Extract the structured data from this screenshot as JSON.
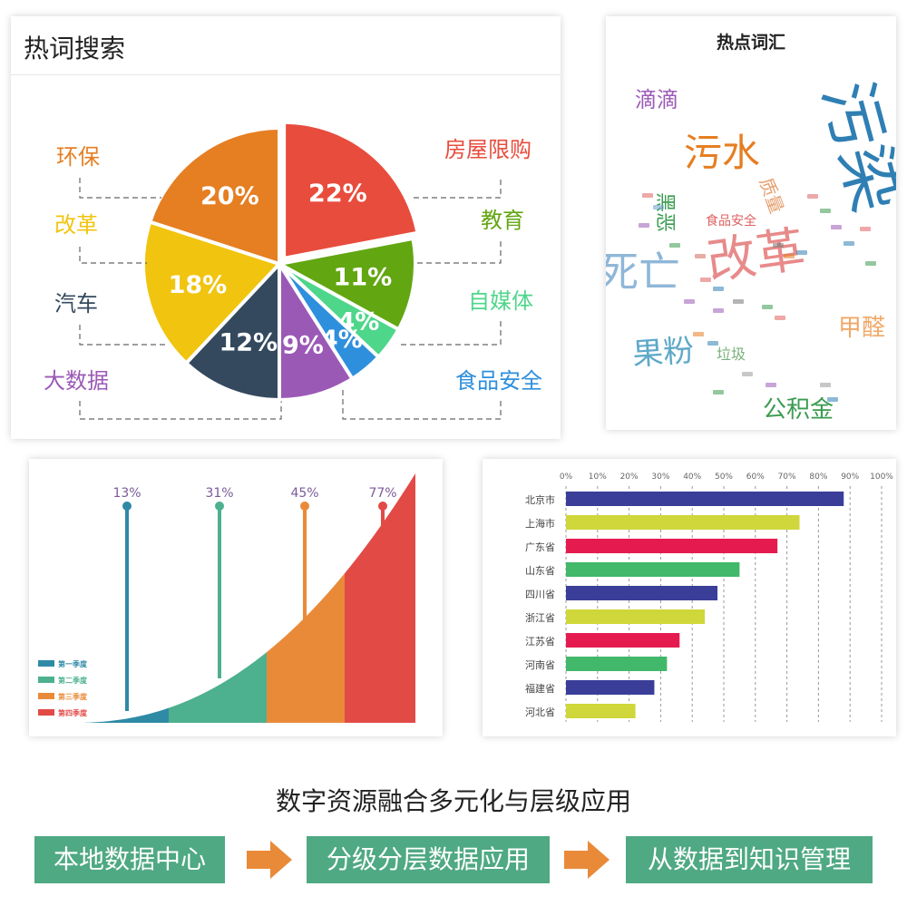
{
  "pie_card": {
    "title": "热词搜索"
  },
  "wordcloud_card": {
    "title": "热点词汇"
  },
  "funnel_card": {},
  "bar_card": {},
  "footer": {
    "title": "数字资源融合多元化与层级应用",
    "steps": [
      "本地数据中心",
      "分级分层数据应用",
      "从数据到知识管理"
    ],
    "step_color": "#4fa983",
    "arrow_color": "#e98a39"
  },
  "chart_data": [
    {
      "type": "pie",
      "title": "热词搜索",
      "slices": [
        {
          "label": "房屋限购",
          "value": 22,
          "display": "22%",
          "color": "#e84c3d"
        },
        {
          "label": "教育",
          "value": 11,
          "display": "11%",
          "color": "#62a612"
        },
        {
          "label": "自媒体",
          "value": 4,
          "display": "4%",
          "color": "#4ed68a"
        },
        {
          "label": "食品安全",
          "value": 4,
          "display": "4%",
          "color": "#2e8fdd"
        },
        {
          "label": "大数据",
          "value": 9,
          "display": "9%",
          "color": "#9b59b6"
        },
        {
          "label": "汽车",
          "value": 12,
          "display": "12%",
          "color": "#34495e"
        },
        {
          "label": "改革",
          "value": 18,
          "display": "18%",
          "color": "#f1c40f"
        },
        {
          "label": "环保",
          "value": 20,
          "display": "20%",
          "color": "#e67e22"
        }
      ]
    },
    {
      "type": "wordcloud",
      "title": "热点词汇",
      "words": [
        {
          "text": "污染",
          "color": "#2f7fb4"
        },
        {
          "text": "污水",
          "color": "#e67e22"
        },
        {
          "text": "滴滴",
          "color": "#9b59b6"
        },
        {
          "text": "改革",
          "color": "#e88a8a"
        },
        {
          "text": "死亡",
          "color": "#8fb7d8"
        },
        {
          "text": "果粉",
          "color": "#5fa9c9"
        },
        {
          "text": "甲醛",
          "color": "#f0a868"
        },
        {
          "text": "公积金",
          "color": "#3a9b4f"
        },
        {
          "text": "黑恶",
          "color": "#3a9b4f"
        },
        {
          "text": "质量",
          "color": "#e6a070"
        },
        {
          "text": "食品安全",
          "color": "#e06060"
        },
        {
          "text": "垃圾",
          "color": "#7ab07a"
        }
      ]
    },
    {
      "type": "area",
      "series": [
        {
          "name": "第一季度",
          "value": 13,
          "display": "13%",
          "color": "#2f8aa6"
        },
        {
          "name": "第二季度",
          "value": 31,
          "display": "31%",
          "color": "#4db08e"
        },
        {
          "name": "第三季度",
          "value": 45,
          "display": "45%",
          "color": "#e98a39"
        },
        {
          "name": "第四季度",
          "value": 77,
          "display": "77%",
          "color": "#e24a46"
        }
      ],
      "label_color": "#7a5a9a"
    },
    {
      "type": "bar",
      "orientation": "horizontal",
      "categories": [
        "北京市",
        "上海市",
        "广东省",
        "山东省",
        "四川省",
        "浙江省",
        "江苏省",
        "河南省",
        "福建省",
        "河北省"
      ],
      "values": [
        88,
        74,
        67,
        55,
        48,
        44,
        36,
        32,
        28,
        22
      ],
      "colors": [
        "#3a3e99",
        "#cfd73a",
        "#e51b4f",
        "#42b86a",
        "#3a3e99",
        "#cfd73a",
        "#e51b4f",
        "#42b86a",
        "#3a3e99",
        "#cfd73a"
      ],
      "xticks": [
        "0%",
        "10%",
        "20%",
        "30%",
        "40%",
        "50%",
        "60%",
        "70%",
        "80%",
        "90%",
        "100%"
      ],
      "xlim": [
        0,
        100
      ],
      "grid": true
    }
  ]
}
